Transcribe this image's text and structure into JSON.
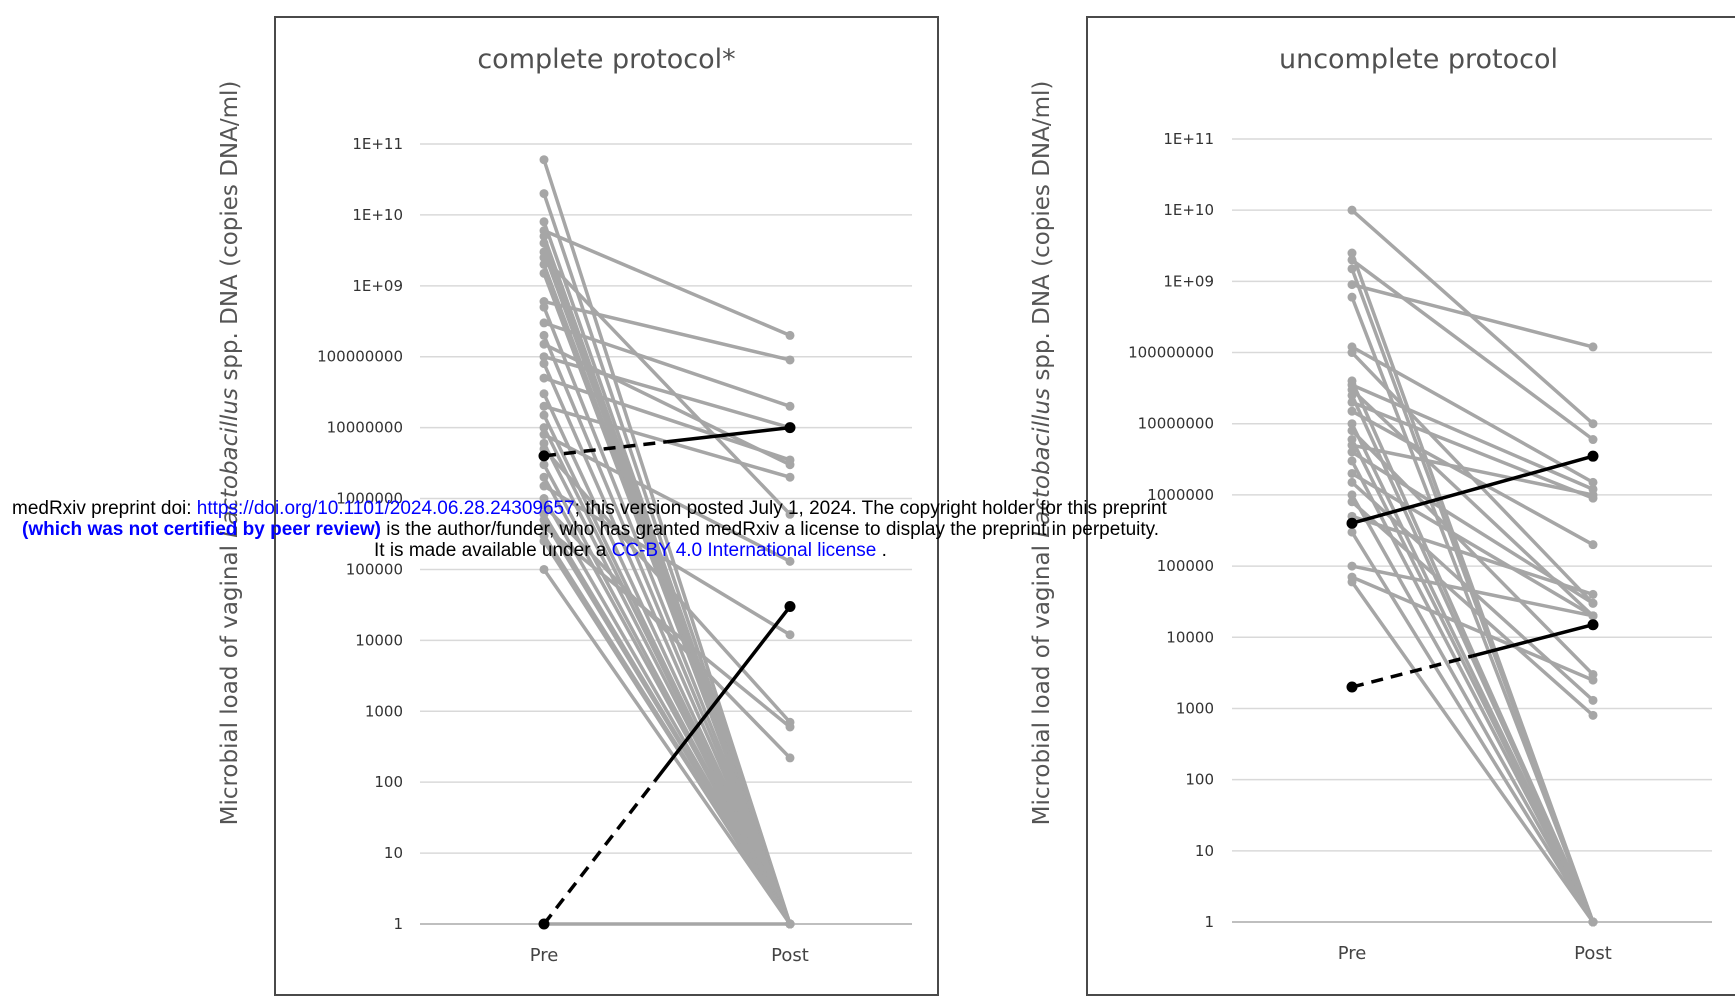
{
  "notice": {
    "line1_prefix": "medRxiv preprint doi: ",
    "doi_link": "https://doi.org/10.1101/2024.06.28.24309657",
    "line1_suffix": "; this version posted July 1, 2024. The copyright holder for this preprint",
    "line2_bold": "(which was not certified by peer review)",
    "line2_rest": " is the author/funder, who has granted medRxiv a license to display the preprint in perpetuity.",
    "line3_prefix": "It is made available under a ",
    "license_link": "CC-BY 4.0 International license",
    "line3_suffix": " ."
  },
  "colors": {
    "gray_series": "#a6a6a6",
    "highlight_series": "#000000",
    "gridline": "#d9d9d9"
  },
  "chart_data": [
    {
      "type": "line",
      "title": "complete  protocol*",
      "ylabel_pre": "Microbial load of vaginal ",
      "ylabel_italic": "Lactobacillus",
      "ylabel_post": " spp. DNA (copies DNA/ml)",
      "yscale": "log",
      "ylim": [
        1,
        100000000000
      ],
      "ytick_labels": [
        "1",
        "10",
        "100",
        "1000",
        "10000",
        "100000",
        "1000000",
        "10000000",
        "100000000",
        "1E+09",
        "1E+10",
        "1E+11"
      ],
      "categories": [
        "Pre",
        "Post"
      ],
      "grid": true,
      "gray_pairs": [
        [
          60000000000,
          1
        ],
        [
          20000000000,
          1
        ],
        [
          8000000000,
          1
        ],
        [
          6000000000,
          200000000
        ],
        [
          5000000000,
          1
        ],
        [
          4000000000,
          1
        ],
        [
          3000000000,
          1
        ],
        [
          2500000000,
          600000
        ],
        [
          2000000000,
          1
        ],
        [
          1500000000,
          1
        ],
        [
          600000000,
          90000000
        ],
        [
          500000000,
          1
        ],
        [
          300000000,
          20000000
        ],
        [
          200000000,
          1
        ],
        [
          150000000,
          3000000
        ],
        [
          100000000,
          10000000
        ],
        [
          80000000,
          1
        ],
        [
          50000000,
          3500000
        ],
        [
          30000000,
          1
        ],
        [
          20000000,
          2000000
        ],
        [
          15000000,
          1
        ],
        [
          10000000,
          1
        ],
        [
          8000000,
          130000
        ],
        [
          6000000,
          1
        ],
        [
          5000000,
          700
        ],
        [
          3000000,
          1
        ],
        [
          2000000,
          1
        ],
        [
          1500000,
          12000
        ],
        [
          1000000,
          1
        ],
        [
          800000,
          220
        ],
        [
          600000,
          1
        ],
        [
          500000,
          1
        ],
        [
          400000,
          600
        ],
        [
          300000,
          1
        ],
        [
          250000,
          1
        ],
        [
          100000,
          1
        ],
        [
          1,
          1
        ]
      ],
      "highlight_pairs": [
        {
          "pre": 4000000,
          "post": 10000000,
          "dashed_fraction": 0.5
        },
        {
          "pre": 1,
          "post": 30000,
          "dashed_fraction": 0.45
        }
      ]
    },
    {
      "type": "line",
      "title": "uncomplete  protocol",
      "ylabel_pre": "Microbial load of vaginal ",
      "ylabel_italic": "Lactobacillus",
      "ylabel_post": " spp. DNA (copies DNA/ml)",
      "yscale": "log",
      "ylim": [
        1,
        100000000000
      ],
      "ytick_labels": [
        "1",
        "10",
        "100",
        "1000",
        "10000",
        "100000",
        "1000000",
        "10000000",
        "100000000",
        "1E+09",
        "1E+10",
        "1E+11"
      ],
      "categories": [
        "Pre",
        "Post"
      ],
      "grid": true,
      "gray_pairs": [
        [
          10000000000,
          10000000
        ],
        [
          2500000000,
          1
        ],
        [
          2000000000,
          6000000
        ],
        [
          1500000000,
          1
        ],
        [
          900000000,
          120000000
        ],
        [
          600000000,
          1
        ],
        [
          120000000,
          1500000
        ],
        [
          100000000,
          30000
        ],
        [
          40000000,
          1
        ],
        [
          35000000,
          1200000
        ],
        [
          30000000,
          20000
        ],
        [
          25000000,
          1
        ],
        [
          20000000,
          900000
        ],
        [
          15000000,
          200000
        ],
        [
          10000000,
          1
        ],
        [
          8000000,
          3000
        ],
        [
          6000000,
          1
        ],
        [
          5000000,
          1000000
        ],
        [
          4000000,
          30000
        ],
        [
          3000000,
          1
        ],
        [
          2000000,
          20000
        ],
        [
          1500000,
          1300
        ],
        [
          1000000,
          1
        ],
        [
          800000,
          800
        ],
        [
          500000,
          40000
        ],
        [
          300000,
          1
        ],
        [
          100000,
          20000
        ],
        [
          70000,
          2500
        ],
        [
          60000,
          1
        ]
      ],
      "highlight_pairs": [
        {
          "pre": 400000,
          "post": 3500000,
          "dashed_fraction": 0.0
        },
        {
          "pre": 2000,
          "post": 15000,
          "dashed_fraction": 0.5
        }
      ]
    }
  ]
}
